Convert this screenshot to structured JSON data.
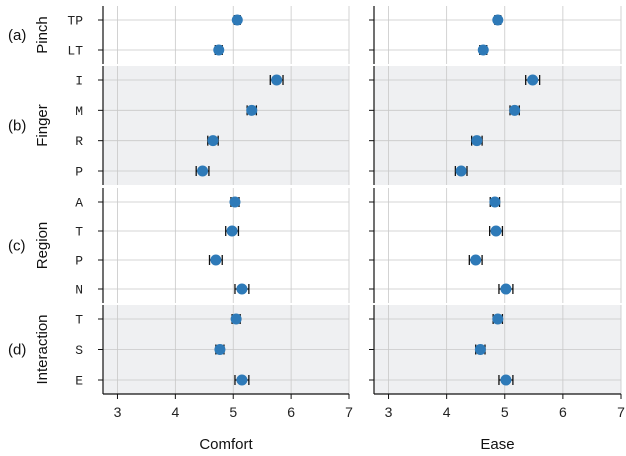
{
  "chart_data": {
    "type": "scatter",
    "error_bars": true,
    "panels": [
      {
        "xlabel": "Comfort",
        "xlim": [
          2.75,
          7
        ],
        "xticks": [
          "3",
          "4",
          "5",
          "6",
          "7"
        ]
      },
      {
        "xlabel": "Ease",
        "xlim": [
          2.75,
          7
        ],
        "xticks": [
          "3",
          "4",
          "5",
          "6",
          "7"
        ]
      }
    ],
    "groups": [
      {
        "letter": "(a)",
        "name": "Pinch",
        "shaded": false,
        "categories": [
          "TP",
          "LT"
        ],
        "comfort": [
          5.07,
          4.75
        ],
        "comfort_err": [
          0.05,
          0.06
        ],
        "ease": [
          4.88,
          4.63
        ],
        "ease_err": [
          0.05,
          0.06
        ]
      },
      {
        "letter": "(b)",
        "name": "Finger",
        "shaded": true,
        "categories": [
          "I",
          "M",
          "R",
          "P"
        ],
        "comfort": [
          5.75,
          5.32,
          4.65,
          4.47
        ],
        "comfort_err": [
          0.11,
          0.08,
          0.09,
          0.11
        ],
        "ease": [
          5.48,
          5.17,
          4.52,
          4.25
        ],
        "ease_err": [
          0.12,
          0.08,
          0.09,
          0.1
        ]
      },
      {
        "letter": "(c)",
        "name": "Region",
        "shaded": false,
        "categories": [
          "A",
          "T",
          "P",
          "N"
        ],
        "comfort": [
          5.03,
          4.98,
          4.7,
          5.15
        ],
        "comfort_err": [
          0.07,
          0.11,
          0.11,
          0.12
        ],
        "ease": [
          4.83,
          4.85,
          4.5,
          5.02
        ],
        "ease_err": [
          0.08,
          0.11,
          0.11,
          0.12
        ]
      },
      {
        "letter": "(d)",
        "name": "Interaction",
        "shaded": true,
        "categories": [
          "T",
          "S",
          "E"
        ],
        "comfort": [
          5.05,
          4.77,
          5.15
        ],
        "comfort_err": [
          0.07,
          0.07,
          0.12
        ],
        "ease": [
          4.88,
          4.58,
          5.02
        ],
        "ease_err": [
          0.08,
          0.08,
          0.12
        ]
      }
    ],
    "colors": {
      "marker": "#2e7ab8",
      "shade": "#eff0f2",
      "grid": "#c8c8c8",
      "axis": "#111111"
    },
    "grid": true
  }
}
